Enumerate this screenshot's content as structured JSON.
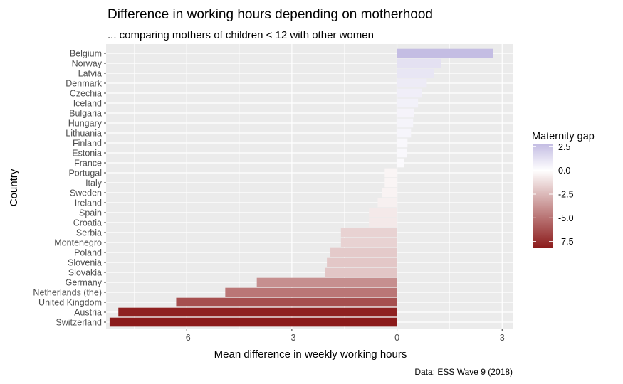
{
  "chart_data": {
    "type": "bar",
    "orientation": "horizontal",
    "title": "Difference in working hours depending on motherhood",
    "subtitle": "... comparing mothers of children < 12 with other women",
    "xlabel": "Mean difference in weekly working hours",
    "ylabel": "Country",
    "caption": "Data: ESS Wave 9 (2018)",
    "xlim": [
      -8.3,
      3.3
    ],
    "xticks": [
      -6,
      -3,
      0,
      3
    ],
    "xtick_labels": [
      "-6",
      "-3",
      "0",
      "3"
    ],
    "grid": true,
    "categories": [
      "Belgium",
      "Norway",
      "Latvia",
      "Denmark",
      "Czechia",
      "Iceland",
      "Bulgaria",
      "Hungary",
      "Lithuania",
      "Finland",
      "Estonia",
      "France",
      "Portugal",
      "Italy",
      "Sweden",
      "Ireland",
      "Spain",
      "Croatia",
      "Serbia",
      "Montenegro",
      "Poland",
      "Slovenia",
      "Slovakia",
      "Germany",
      "Netherlands (the)",
      "United Kingdom",
      "Austria",
      "Switzerland"
    ],
    "values": [
      2.75,
      1.25,
      1.05,
      0.85,
      0.72,
      0.6,
      0.48,
      0.46,
      0.4,
      0.3,
      0.28,
      0.2,
      -0.35,
      -0.35,
      -0.42,
      -0.55,
      -0.8,
      -0.8,
      -1.6,
      -1.6,
      -1.9,
      -2.0,
      -2.05,
      -4.0,
      -4.9,
      -6.3,
      -7.95,
      -8.2
    ],
    "legend": {
      "title": "Maternity gap",
      "position": "right",
      "breaks": [
        2.5,
        0.0,
        -2.5,
        -5.0,
        -7.5
      ],
      "labels": [
        "2.5",
        "0.0",
        "-2.5",
        "-5.0",
        "-7.5"
      ],
      "low_color": "#8b1a1a",
      "mid_color": "#ffffff",
      "high_color": "#c4bde3"
    },
    "panel_color": "#ebebeb",
    "grid_color": "#ffffff"
  }
}
